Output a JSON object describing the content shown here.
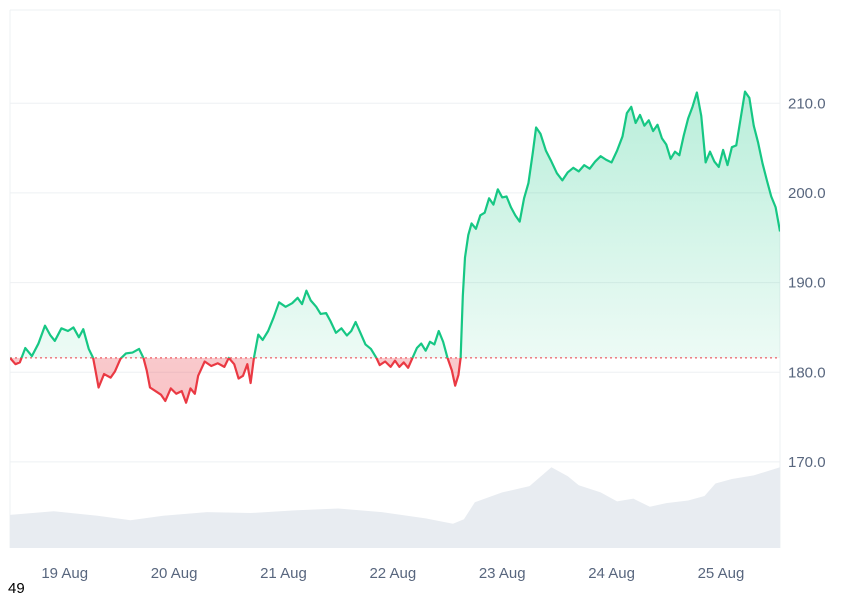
{
  "chart_data": {
    "type": "area",
    "baseline": 181.6,
    "ylim": [
      160.4,
      220.4
    ],
    "y_ticks": [
      {
        "value": 170,
        "label": "170.0"
      },
      {
        "value": 180,
        "label": "180.0"
      },
      {
        "value": 190,
        "label": "190.0"
      },
      {
        "value": 200,
        "label": "200.0"
      },
      {
        "value": 210,
        "label": "210.0"
      }
    ],
    "x_ticks": [
      {
        "value": 0.5,
        "label": "19 Aug"
      },
      {
        "value": 1.5,
        "label": "20 Aug"
      },
      {
        "value": 2.5,
        "label": "21 Aug"
      },
      {
        "value": 3.5,
        "label": "22 Aug"
      },
      {
        "value": 4.5,
        "label": "23 Aug"
      },
      {
        "value": 5.5,
        "label": "24 Aug"
      },
      {
        "value": 6.5,
        "label": "25 Aug"
      }
    ],
    "x_range": [
      0.0,
      7.04
    ],
    "series": [
      {
        "points": [
          [
            0.0,
            181.6
          ],
          [
            0.05,
            180.9
          ],
          [
            0.09,
            181.1
          ],
          [
            0.14,
            182.7
          ],
          [
            0.2,
            181.8
          ],
          [
            0.26,
            183.2
          ],
          [
            0.32,
            185.2
          ],
          [
            0.37,
            184.1
          ],
          [
            0.41,
            183.5
          ],
          [
            0.47,
            184.9
          ],
          [
            0.53,
            184.6
          ],
          [
            0.58,
            185.0
          ],
          [
            0.63,
            183.9
          ],
          [
            0.67,
            184.8
          ],
          [
            0.72,
            182.6
          ],
          [
            0.76,
            181.6
          ],
          [
            0.78,
            180.3
          ],
          [
            0.81,
            178.3
          ],
          [
            0.86,
            179.8
          ],
          [
            0.92,
            179.4
          ],
          [
            0.96,
            180.1
          ],
          [
            1.01,
            181.5
          ],
          [
            1.06,
            182.1
          ],
          [
            1.12,
            182.2
          ],
          [
            1.18,
            182.6
          ],
          [
            1.22,
            181.6
          ],
          [
            1.25,
            180.2
          ],
          [
            1.28,
            178.3
          ],
          [
            1.33,
            177.9
          ],
          [
            1.38,
            177.5
          ],
          [
            1.42,
            176.8
          ],
          [
            1.47,
            178.2
          ],
          [
            1.52,
            177.6
          ],
          [
            1.57,
            177.9
          ],
          [
            1.61,
            176.6
          ],
          [
            1.65,
            178.2
          ],
          [
            1.69,
            177.6
          ],
          [
            1.72,
            179.6
          ],
          [
            1.75,
            180.4
          ],
          [
            1.78,
            181.2
          ],
          [
            1.84,
            180.7
          ],
          [
            1.9,
            181.0
          ],
          [
            1.96,
            180.6
          ],
          [
            2.0,
            181.6
          ],
          [
            2.05,
            180.9
          ],
          [
            2.09,
            179.3
          ],
          [
            2.13,
            179.6
          ],
          [
            2.17,
            180.9
          ],
          [
            2.2,
            178.8
          ],
          [
            2.23,
            181.6
          ],
          [
            2.27,
            184.2
          ],
          [
            2.31,
            183.6
          ],
          [
            2.36,
            184.6
          ],
          [
            2.41,
            186.1
          ],
          [
            2.46,
            187.8
          ],
          [
            2.52,
            187.3
          ],
          [
            2.58,
            187.7
          ],
          [
            2.63,
            188.3
          ],
          [
            2.67,
            187.6
          ],
          [
            2.71,
            189.1
          ],
          [
            2.75,
            188.0
          ],
          [
            2.8,
            187.3
          ],
          [
            2.84,
            186.5
          ],
          [
            2.89,
            186.6
          ],
          [
            2.93,
            185.7
          ],
          [
            2.98,
            184.4
          ],
          [
            3.03,
            184.9
          ],
          [
            3.08,
            184.1
          ],
          [
            3.12,
            184.6
          ],
          [
            3.16,
            185.6
          ],
          [
            3.2,
            184.5
          ],
          [
            3.25,
            183.1
          ],
          [
            3.3,
            182.6
          ],
          [
            3.35,
            181.6
          ],
          [
            3.38,
            180.8
          ],
          [
            3.43,
            181.2
          ],
          [
            3.48,
            180.6
          ],
          [
            3.52,
            181.3
          ],
          [
            3.56,
            180.6
          ],
          [
            3.6,
            181.1
          ],
          [
            3.64,
            180.5
          ],
          [
            3.68,
            181.6
          ],
          [
            3.72,
            182.7
          ],
          [
            3.76,
            183.2
          ],
          [
            3.8,
            182.4
          ],
          [
            3.84,
            183.4
          ],
          [
            3.88,
            183.1
          ],
          [
            3.92,
            184.6
          ],
          [
            3.96,
            183.4
          ],
          [
            4.0,
            181.6
          ],
          [
            4.04,
            180.2
          ],
          [
            4.07,
            178.5
          ],
          [
            4.1,
            179.7
          ],
          [
            4.12,
            181.6
          ],
          [
            4.14,
            188.5
          ],
          [
            4.16,
            192.8
          ],
          [
            4.19,
            195.3
          ],
          [
            4.22,
            196.6
          ],
          [
            4.26,
            196.0
          ],
          [
            4.3,
            197.5
          ],
          [
            4.34,
            197.8
          ],
          [
            4.38,
            199.4
          ],
          [
            4.42,
            198.7
          ],
          [
            4.46,
            200.4
          ],
          [
            4.5,
            199.5
          ],
          [
            4.54,
            199.6
          ],
          [
            4.58,
            198.4
          ],
          [
            4.62,
            197.5
          ],
          [
            4.66,
            196.8
          ],
          [
            4.7,
            199.4
          ],
          [
            4.74,
            201.1
          ],
          [
            4.78,
            204.5
          ],
          [
            4.81,
            207.3
          ],
          [
            4.85,
            206.6
          ],
          [
            4.9,
            204.7
          ],
          [
            4.95,
            203.5
          ],
          [
            5.0,
            202.2
          ],
          [
            5.05,
            201.4
          ],
          [
            5.1,
            202.3
          ],
          [
            5.15,
            202.8
          ],
          [
            5.2,
            202.4
          ],
          [
            5.25,
            203.1
          ],
          [
            5.3,
            202.7
          ],
          [
            5.35,
            203.5
          ],
          [
            5.4,
            204.1
          ],
          [
            5.45,
            203.7
          ],
          [
            5.5,
            203.4
          ],
          [
            5.55,
            204.7
          ],
          [
            5.6,
            206.3
          ],
          [
            5.64,
            208.9
          ],
          [
            5.68,
            209.6
          ],
          [
            5.72,
            207.8
          ],
          [
            5.76,
            208.7
          ],
          [
            5.8,
            207.5
          ],
          [
            5.84,
            208.1
          ],
          [
            5.88,
            206.9
          ],
          [
            5.92,
            207.6
          ],
          [
            5.96,
            206.1
          ],
          [
            6.0,
            205.4
          ],
          [
            6.04,
            203.8
          ],
          [
            6.08,
            204.6
          ],
          [
            6.12,
            204.2
          ],
          [
            6.16,
            206.4
          ],
          [
            6.2,
            208.3
          ],
          [
            6.24,
            209.6
          ],
          [
            6.28,
            211.2
          ],
          [
            6.32,
            208.6
          ],
          [
            6.36,
            203.4
          ],
          [
            6.4,
            204.6
          ],
          [
            6.44,
            203.5
          ],
          [
            6.48,
            202.9
          ],
          [
            6.52,
            204.8
          ],
          [
            6.56,
            203.1
          ],
          [
            6.6,
            205.1
          ],
          [
            6.64,
            205.3
          ],
          [
            6.68,
            208.3
          ],
          [
            6.72,
            211.3
          ],
          [
            6.76,
            210.6
          ],
          [
            6.8,
            207.5
          ],
          [
            6.84,
            205.6
          ],
          [
            6.88,
            203.3
          ],
          [
            6.92,
            201.4
          ],
          [
            6.96,
            199.6
          ],
          [
            7.0,
            198.4
          ],
          [
            7.04,
            195.7
          ]
        ]
      }
    ],
    "volume": [
      [
        0.0,
        164.1
      ],
      [
        0.4,
        164.5
      ],
      [
        0.8,
        164.0
      ],
      [
        1.1,
        163.5
      ],
      [
        1.4,
        164.0
      ],
      [
        1.8,
        164.4
      ],
      [
        2.2,
        164.3
      ],
      [
        2.6,
        164.6
      ],
      [
        3.0,
        164.8
      ],
      [
        3.4,
        164.4
      ],
      [
        3.8,
        163.7
      ],
      [
        4.05,
        163.1
      ],
      [
        4.15,
        163.6
      ],
      [
        4.25,
        165.5
      ],
      [
        4.5,
        166.6
      ],
      [
        4.75,
        167.3
      ],
      [
        4.95,
        169.4
      ],
      [
        5.1,
        168.4
      ],
      [
        5.2,
        167.4
      ],
      [
        5.4,
        166.6
      ],
      [
        5.55,
        165.6
      ],
      [
        5.7,
        165.9
      ],
      [
        5.85,
        165.0
      ],
      [
        6.0,
        165.4
      ],
      [
        6.2,
        165.7
      ],
      [
        6.35,
        166.2
      ],
      [
        6.45,
        167.6
      ],
      [
        6.6,
        168.1
      ],
      [
        6.8,
        168.5
      ],
      [
        7.04,
        169.4
      ]
    ],
    "colors": {
      "up_line": "#16c784",
      "down_line": "#ea3943",
      "up_fill": "#16c784",
      "down_fill": "#ea3943",
      "baseline": "#ea3943",
      "grid": "#eef0f3",
      "volume": "#e8ecf1",
      "axis_text": "#58667e"
    },
    "grid": true
  },
  "corner_label": "49"
}
